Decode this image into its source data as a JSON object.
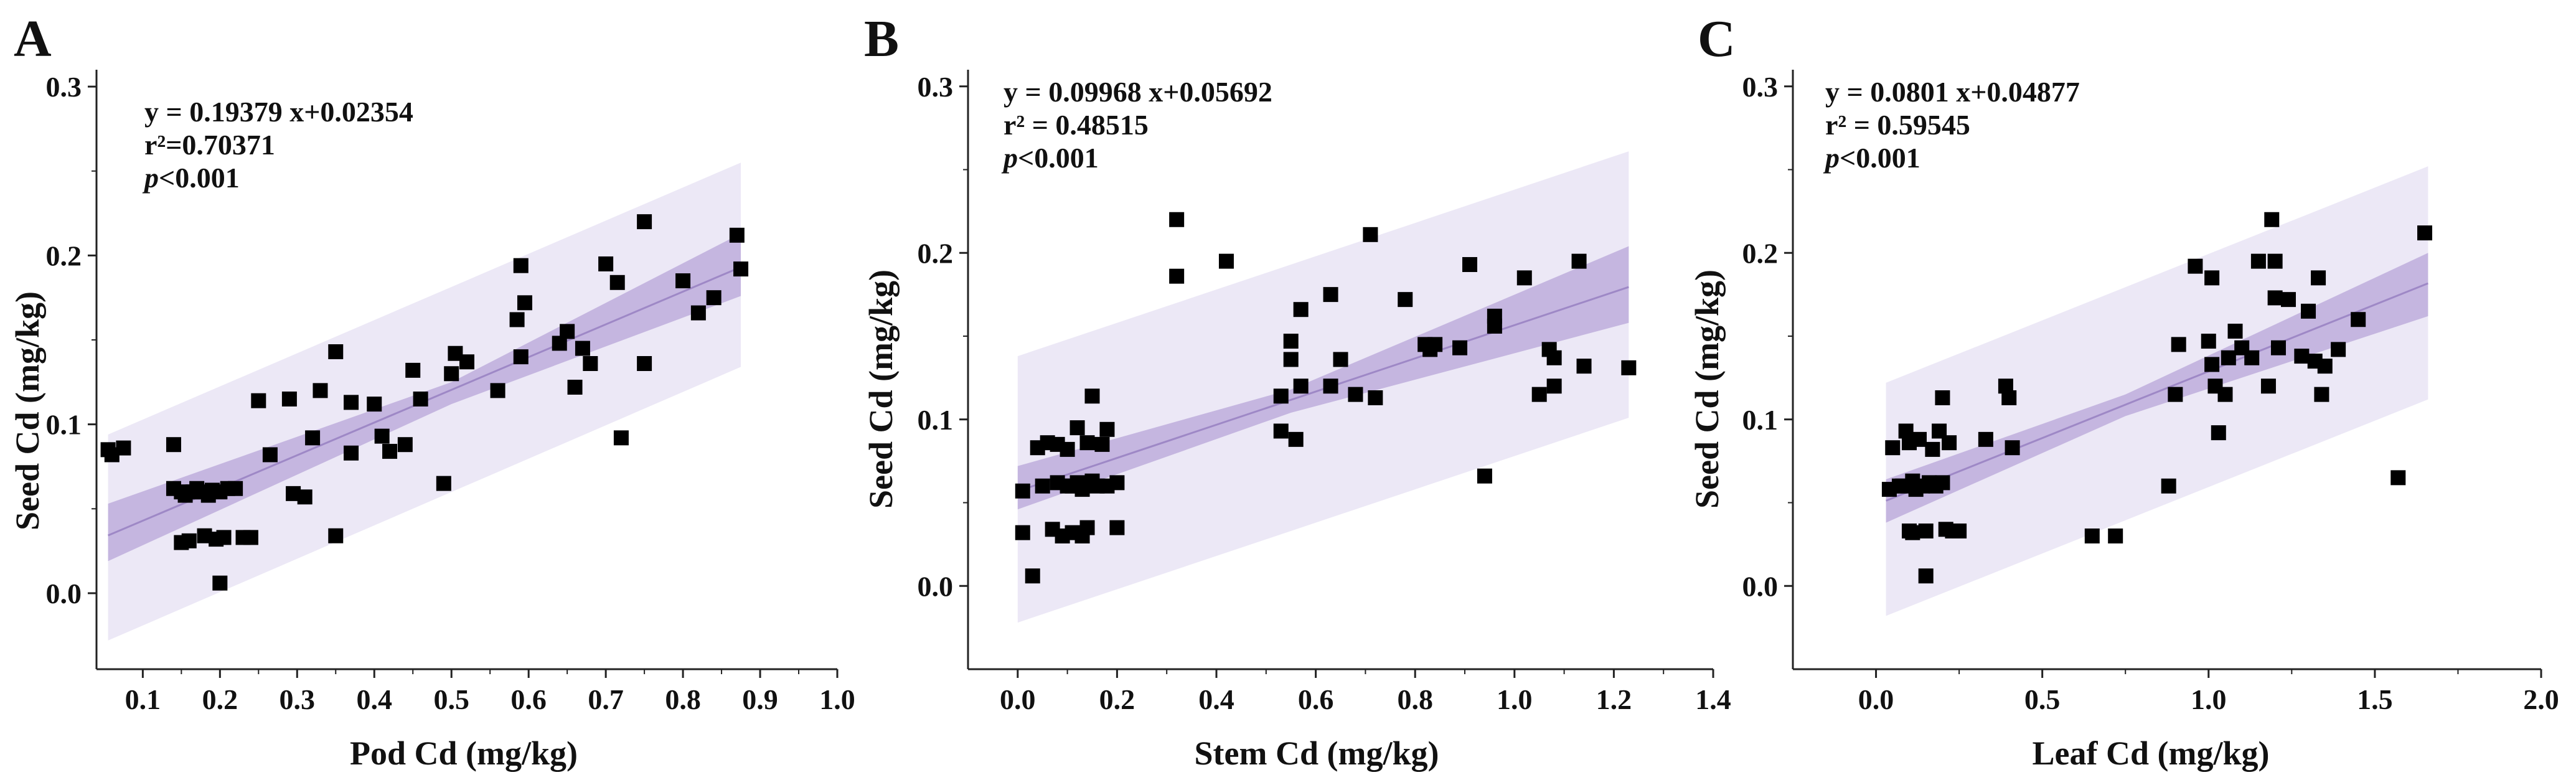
{
  "colors": {
    "prediction_band": "#ece8f6",
    "confidence_band": "#c5b6e0",
    "fit_line": "#9e88c6",
    "points": "#000000",
    "axes": "#222222"
  },
  "chart_data": [
    {
      "type": "scatter",
      "panel_label": "A",
      "xlabel": "Pod Cd (mg/kg)",
      "ylabel": "Seed Cd (mg/kg)",
      "xlim": [
        0.04,
        1.0
      ],
      "ylim": [
        -0.045,
        0.31
      ],
      "xticks": [
        0.1,
        0.2,
        0.3,
        0.4,
        0.5,
        0.6,
        0.7,
        0.8,
        0.9,
        1.0
      ],
      "xtick_labels": [
        "0.1",
        "0.2",
        "0.3",
        "0.4",
        "0.5",
        "0.6",
        "0.7",
        "0.8",
        "0.9",
        "1.0"
      ],
      "yticks": [
        0.0,
        0.1,
        0.2,
        0.3
      ],
      "ytick_labels": [
        "0.0",
        "0.1",
        "0.2",
        "0.3"
      ],
      "equation": "y = 0.19379 x+0.02354",
      "r2_label": "r²=0.70371",
      "p_label": "p<0.001",
      "fit": {
        "slope": 0.19379,
        "intercept": 0.02354,
        "x_range": [
          0.055,
          0.875
        ]
      },
      "confidence_band": {
        "lower": [
          [
            0.055,
            0.019
          ],
          [
            0.5,
            0.112
          ],
          [
            0.875,
            0.176
          ]
        ],
        "upper": [
          [
            0.055,
            0.053
          ],
          [
            0.5,
            0.125
          ],
          [
            0.875,
            0.213
          ]
        ]
      },
      "prediction_band": {
        "lower": [
          [
            0.055,
            -0.028
          ],
          [
            0.875,
            0.134
          ]
        ],
        "upper": [
          [
            0.055,
            0.094
          ],
          [
            0.875,
            0.255
          ]
        ]
      },
      "points": [
        [
          0.055,
          0.085
        ],
        [
          0.06,
          0.082
        ],
        [
          0.075,
          0.086
        ],
        [
          0.14,
          0.088
        ],
        [
          0.14,
          0.062
        ],
        [
          0.15,
          0.06
        ],
        [
          0.15,
          0.03
        ],
        [
          0.155,
          0.058
        ],
        [
          0.16,
          0.031
        ],
        [
          0.165,
          0.06
        ],
        [
          0.17,
          0.062
        ],
        [
          0.175,
          0.06
        ],
        [
          0.18,
          0.034
        ],
        [
          0.185,
          0.058
        ],
        [
          0.19,
          0.061
        ],
        [
          0.195,
          0.032
        ],
        [
          0.2,
          0.006
        ],
        [
          0.2,
          0.06
        ],
        [
          0.205,
          0.033
        ],
        [
          0.21,
          0.062
        ],
        [
          0.22,
          0.062
        ],
        [
          0.23,
          0.033
        ],
        [
          0.24,
          0.033
        ],
        [
          0.25,
          0.114
        ],
        [
          0.265,
          0.082
        ],
        [
          0.29,
          0.115
        ],
        [
          0.295,
          0.059
        ],
        [
          0.31,
          0.057
        ],
        [
          0.32,
          0.092
        ],
        [
          0.33,
          0.12
        ],
        [
          0.35,
          0.143
        ],
        [
          0.35,
          0.034
        ],
        [
          0.37,
          0.113
        ],
        [
          0.37,
          0.083
        ],
        [
          0.4,
          0.112
        ],
        [
          0.41,
          0.093
        ],
        [
          0.42,
          0.084
        ],
        [
          0.44,
          0.088
        ],
        [
          0.45,
          0.132
        ],
        [
          0.46,
          0.115
        ],
        [
          0.49,
          0.065
        ],
        [
          0.5,
          0.13
        ],
        [
          0.505,
          0.142
        ],
        [
          0.52,
          0.137
        ],
        [
          0.56,
          0.12
        ],
        [
          0.585,
          0.162
        ],
        [
          0.59,
          0.194
        ],
        [
          0.59,
          0.14
        ],
        [
          0.595,
          0.172
        ],
        [
          0.64,
          0.148
        ],
        [
          0.65,
          0.155
        ],
        [
          0.66,
          0.122
        ],
        [
          0.67,
          0.145
        ],
        [
          0.68,
          0.136
        ],
        [
          0.7,
          0.195
        ],
        [
          0.715,
          0.184
        ],
        [
          0.72,
          0.092
        ],
        [
          0.75,
          0.22
        ],
        [
          0.75,
          0.136
        ],
        [
          0.8,
          0.185
        ],
        [
          0.82,
          0.166
        ],
        [
          0.84,
          0.175
        ],
        [
          0.87,
          0.212
        ],
        [
          0.875,
          0.192
        ]
      ]
    },
    {
      "type": "scatter",
      "panel_label": "B",
      "xlabel": "Stem Cd (mg/kg)",
      "ylabel": "Seed Cd (mg/kg)",
      "xlim": [
        -0.1,
        1.4
      ],
      "ylim": [
        -0.05,
        0.31
      ],
      "xticks": [
        0.0,
        0.2,
        0.4,
        0.6,
        0.8,
        1.0,
        1.2,
        1.4
      ],
      "xtick_labels": [
        "0.0",
        "0.2",
        "0.4",
        "0.6",
        "0.8",
        "1.0",
        "1.2",
        "1.4"
      ],
      "yticks": [
        0.0,
        0.1,
        0.2,
        0.3
      ],
      "ytick_labels": [
        "0.0",
        "0.1",
        "0.2",
        "0.3"
      ],
      "equation": "y =  0.09968 x+0.05692",
      "r2_label": "r² = 0.48515",
      "p_label": "p<0.001",
      "fit": {
        "slope": 0.09968,
        "intercept": 0.05692,
        "x_range": [
          0.0,
          1.23
        ]
      },
      "confidence_band": {
        "lower": [
          [
            0.0,
            0.046
          ],
          [
            0.55,
            0.104
          ],
          [
            1.23,
            0.158
          ]
        ],
        "upper": [
          [
            0.0,
            0.072
          ],
          [
            0.55,
            0.118
          ],
          [
            1.23,
            0.204
          ]
        ]
      },
      "prediction_band": {
        "lower": [
          [
            0.0,
            -0.022
          ],
          [
            1.23,
            0.101
          ]
        ],
        "upper": [
          [
            0.0,
            0.138
          ],
          [
            1.23,
            0.261
          ]
        ]
      },
      "points": [
        [
          0.01,
          0.057
        ],
        [
          0.01,
          0.032
        ],
        [
          0.03,
          0.006
        ],
        [
          0.04,
          0.083
        ],
        [
          0.05,
          0.06
        ],
        [
          0.06,
          0.086
        ],
        [
          0.07,
          0.034
        ],
        [
          0.08,
          0.085
        ],
        [
          0.08,
          0.062
        ],
        [
          0.09,
          0.03
        ],
        [
          0.1,
          0.06
        ],
        [
          0.1,
          0.082
        ],
        [
          0.11,
          0.032
        ],
        [
          0.11,
          0.06
        ],
        [
          0.12,
          0.095
        ],
        [
          0.12,
          0.062
        ],
        [
          0.13,
          0.03
        ],
        [
          0.13,
          0.058
        ],
        [
          0.14,
          0.086
        ],
        [
          0.14,
          0.035
        ],
        [
          0.15,
          0.063
        ],
        [
          0.15,
          0.114
        ],
        [
          0.16,
          0.06
        ],
        [
          0.17,
          0.085
        ],
        [
          0.18,
          0.094
        ],
        [
          0.18,
          0.06
        ],
        [
          0.2,
          0.062
        ],
        [
          0.2,
          0.035
        ],
        [
          0.32,
          0.22
        ],
        [
          0.32,
          0.186
        ],
        [
          0.42,
          0.195
        ],
        [
          0.53,
          0.114
        ],
        [
          0.53,
          0.093
        ],
        [
          0.55,
          0.147
        ],
        [
          0.55,
          0.136
        ],
        [
          0.56,
          0.088
        ],
        [
          0.57,
          0.166
        ],
        [
          0.57,
          0.12
        ],
        [
          0.63,
          0.175
        ],
        [
          0.63,
          0.12
        ],
        [
          0.65,
          0.136
        ],
        [
          0.68,
          0.115
        ],
        [
          0.71,
          0.211
        ],
        [
          0.72,
          0.113
        ],
        [
          0.78,
          0.172
        ],
        [
          0.82,
          0.145
        ],
        [
          0.83,
          0.142
        ],
        [
          0.84,
          0.145
        ],
        [
          0.89,
          0.143
        ],
        [
          0.91,
          0.193
        ],
        [
          0.94,
          0.066
        ],
        [
          0.96,
          0.162
        ],
        [
          0.96,
          0.156
        ],
        [
          1.02,
          0.185
        ],
        [
          1.05,
          0.115
        ],
        [
          1.07,
          0.142
        ],
        [
          1.08,
          0.12
        ],
        [
          1.08,
          0.137
        ],
        [
          1.13,
          0.195
        ],
        [
          1.14,
          0.132
        ],
        [
          1.23,
          0.131
        ]
      ]
    },
    {
      "type": "scatter",
      "panel_label": "C",
      "xlabel": "Leaf Cd (mg/kg)",
      "ylabel": "Seed Cd (mg/kg)",
      "xlim": [
        -0.25,
        2.0
      ],
      "ylim": [
        -0.05,
        0.31
      ],
      "xticks": [
        0.0,
        0.5,
        1.0,
        1.5,
        2.0
      ],
      "xtick_labels": [
        "0.0",
        "0.5",
        "1.0",
        "1.5",
        "2.0"
      ],
      "yticks": [
        0.0,
        0.1,
        0.2,
        0.3
      ],
      "ytick_labels": [
        "0.0",
        "0.1",
        "0.2",
        "0.3"
      ],
      "equation": "y =  0.0801 x+0.04877",
      "r2_label": "r² = 0.59545",
      "p_label": "p<0.001",
      "fit": {
        "slope": 0.0801,
        "intercept": 0.04877,
        "x_range": [
          0.03,
          1.66
        ]
      },
      "confidence_band": {
        "lower": [
          [
            0.03,
            0.038
          ],
          [
            0.75,
            0.102
          ],
          [
            1.66,
            0.162
          ]
        ],
        "upper": [
          [
            0.03,
            0.064
          ],
          [
            0.75,
            0.115
          ],
          [
            1.66,
            0.2
          ]
        ]
      },
      "prediction_band": {
        "lower": [
          [
            0.03,
            -0.018
          ],
          [
            1.66,
            0.112
          ]
        ],
        "upper": [
          [
            0.03,
            0.122
          ],
          [
            1.66,
            0.252
          ]
        ]
      },
      "points": [
        [
          0.04,
          0.058
        ],
        [
          0.05,
          0.083
        ],
        [
          0.07,
          0.06
        ],
        [
          0.08,
          0.06
        ],
        [
          0.09,
          0.093
        ],
        [
          0.1,
          0.033
        ],
        [
          0.1,
          0.086
        ],
        [
          0.11,
          0.063
        ],
        [
          0.11,
          0.032
        ],
        [
          0.12,
          0.058
        ],
        [
          0.13,
          0.088
        ],
        [
          0.14,
          0.06
        ],
        [
          0.15,
          0.033
        ],
        [
          0.15,
          0.006
        ],
        [
          0.16,
          0.062
        ],
        [
          0.17,
          0.082
        ],
        [
          0.18,
          0.06
        ],
        [
          0.19,
          0.093
        ],
        [
          0.2,
          0.113
        ],
        [
          0.2,
          0.062
        ],
        [
          0.21,
          0.034
        ],
        [
          0.22,
          0.086
        ],
        [
          0.23,
          0.033
        ],
        [
          0.25,
          0.033
        ],
        [
          0.33,
          0.088
        ],
        [
          0.39,
          0.12
        ],
        [
          0.4,
          0.113
        ],
        [
          0.41,
          0.083
        ],
        [
          0.65,
          0.03
        ],
        [
          0.72,
          0.03
        ],
        [
          0.88,
          0.06
        ],
        [
          0.9,
          0.115
        ],
        [
          0.91,
          0.145
        ],
        [
          0.96,
          0.192
        ],
        [
          1.0,
          0.147
        ],
        [
          1.01,
          0.133
        ],
        [
          1.01,
          0.185
        ],
        [
          1.02,
          0.12
        ],
        [
          1.03,
          0.092
        ],
        [
          1.05,
          0.115
        ],
        [
          1.06,
          0.137
        ],
        [
          1.08,
          0.153
        ],
        [
          1.1,
          0.143
        ],
        [
          1.13,
          0.137
        ],
        [
          1.15,
          0.195
        ],
        [
          1.18,
          0.12
        ],
        [
          1.19,
          0.22
        ],
        [
          1.2,
          0.195
        ],
        [
          1.2,
          0.173
        ],
        [
          1.21,
          0.143
        ],
        [
          1.24,
          0.172
        ],
        [
          1.28,
          0.138
        ],
        [
          1.3,
          0.165
        ],
        [
          1.32,
          0.135
        ],
        [
          1.33,
          0.185
        ],
        [
          1.34,
          0.115
        ],
        [
          1.35,
          0.132
        ],
        [
          1.39,
          0.142
        ],
        [
          1.45,
          0.16
        ],
        [
          1.57,
          0.065
        ],
        [
          1.65,
          0.212
        ]
      ]
    }
  ]
}
